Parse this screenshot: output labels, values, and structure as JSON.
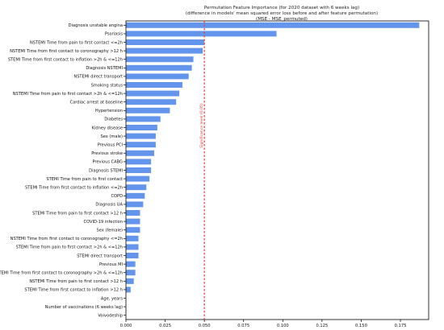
{
  "chart_data": {
    "type": "bar",
    "orientation": "horizontal",
    "title_lines": [
      "Permutation Feature Importance (for 2020 dataset with 6 weeks lag)",
      "(difference in models' mean squared error loss before and after feature permutation)",
      "(MSE - MSE_permuted)"
    ],
    "categories": [
      "Diagnosis unstable angina",
      "Psoriasis",
      "NSTEMI Time from pain to first contact <=2h",
      "NSTEMI Time from first contact to coronography >12 h",
      "STEMI Time from first contact to inflation >2h & <=12h",
      "Diagnosis NSTEMI",
      "NSTEMI direct transport",
      "Smoking status",
      "NSTEMI Time from pain to first contact >2h & <=12h",
      "Cardiac arrest at baseline",
      "Hypertension",
      "Diabetes",
      "Kidney disease",
      "Sex (male)",
      "Previous PCI",
      "Previous stroke",
      "Previous CABG",
      "Diagnosis STEMI",
      "STEMI Time from pain to first contact",
      "STEMI Time from first contact to inflation <=2h",
      "COPD",
      "Diagnosis UA",
      "STEMI Time from pain to first contact >12 h",
      "COVID-19 infection",
      "Sex (female)",
      "NSTEMI Time from first contact to coronography <=2h",
      "STEMI Time from pain to first contact >2h & <=12h",
      "STEMI direct transport",
      "Previous MI",
      "NSTEMI Time from first contact to coronography >2h & <=12h",
      "NSTEMI Time from pain to first contact >12 h",
      "STEMI Time from first contact to inflation >12 h",
      "Age, years",
      "Number of vaccinations (6 weeks lag)",
      "Voivodeship"
    ],
    "values": [
      0.187,
      0.096,
      0.05,
      0.049,
      0.043,
      0.042,
      0.04,
      0.036,
      0.034,
      0.032,
      0.028,
      0.022,
      0.02,
      0.019,
      0.019,
      0.018,
      0.016,
      0.016,
      0.015,
      0.013,
      0.012,
      0.011,
      0.009,
      0.009,
      0.009,
      0.008,
      0.008,
      0.008,
      0.006,
      0.006,
      0.005,
      0.003,
      0.0,
      0.0,
      0.0
    ],
    "xlim": [
      0,
      0.193
    ],
    "xticks": [
      "0.000",
      "0.025",
      "0.050",
      "0.075",
      "0.100",
      "0.125",
      "0.150",
      "0.175"
    ],
    "xtick_values": [
      0,
      0.025,
      0.05,
      0.075,
      0.1,
      0.125,
      0.15,
      0.175
    ],
    "threshold": {
      "value": 0.05,
      "label": "Significance level (0.05)"
    },
    "colors": {
      "bar": "#6495ed",
      "threshold": "#e0403a"
    }
  }
}
